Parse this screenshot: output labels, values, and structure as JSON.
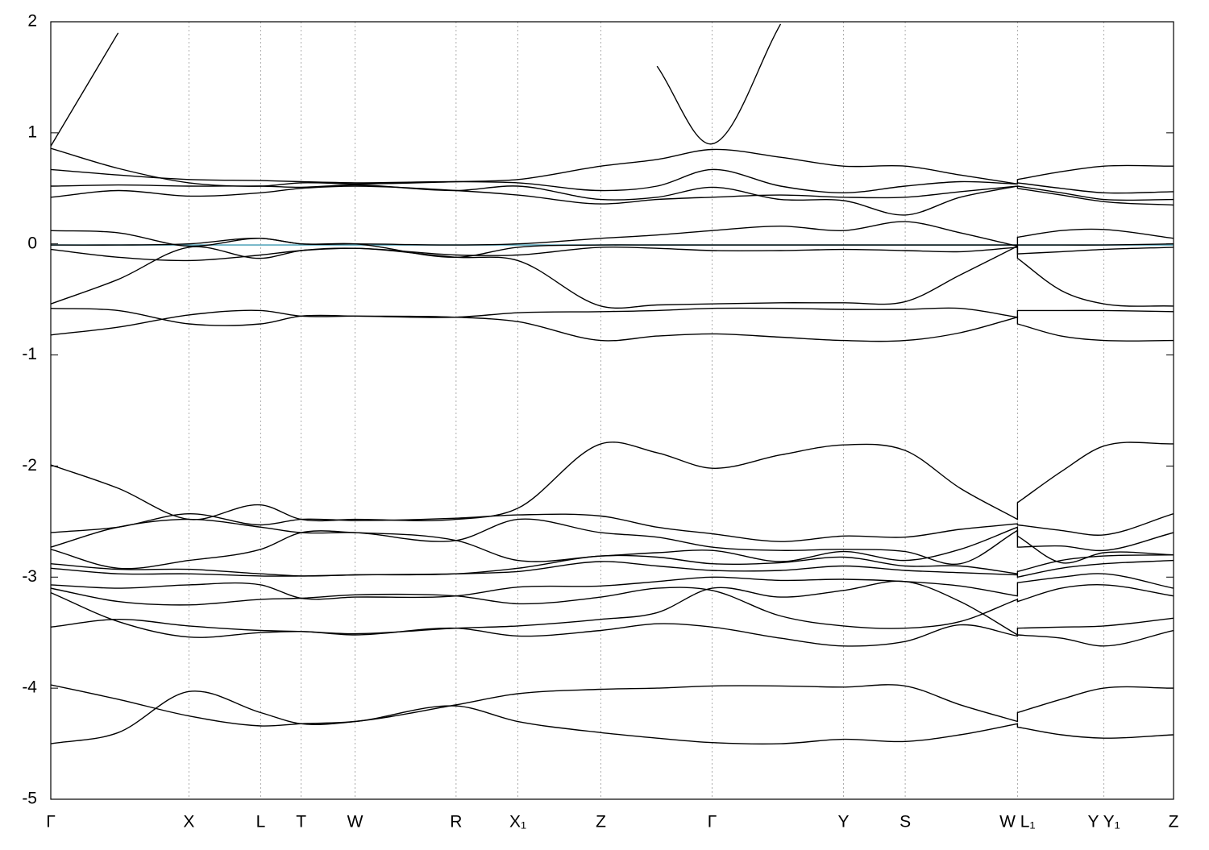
{
  "chart_data": {
    "type": "line",
    "xlim": [
      0,
      1
    ],
    "ylim": [
      -5,
      2
    ],
    "yticks": [
      -5,
      -4,
      -3,
      -2,
      -1,
      0,
      1,
      2
    ],
    "xticks": [
      {
        "value": 0,
        "label": "Γ"
      },
      {
        "value": 0.123,
        "label": "X"
      },
      {
        "value": 0.187,
        "label": "L"
      },
      {
        "value": 0.223,
        "label": "T"
      },
      {
        "value": 0.271,
        "label": "W"
      },
      {
        "value": 0.361,
        "label": "R"
      },
      {
        "value": 0.416,
        "label": "X₁"
      },
      {
        "value": 0.49,
        "label": "Z"
      },
      {
        "value": 0.589,
        "label": "Γ"
      },
      {
        "value": 0.706,
        "label": "Y"
      },
      {
        "value": 0.761,
        "label": "S"
      },
      {
        "value": 0.861,
        "label": "W L₁"
      },
      {
        "value": 0.938,
        "label": "Y Y₁"
      },
      {
        "value": 1,
        "label": "Z"
      }
    ],
    "x_grid": true,
    "reference_line": {
      "value": -0.01,
      "color": "#5aa9bd"
    },
    "x": [
      0,
      0.06,
      0.123,
      0.187,
      0.223,
      0.271,
      0.361,
      0.416,
      0.49,
      0.54,
      0.589,
      0.65,
      0.706,
      0.761,
      0.81,
      0.861,
      0.861,
      0.9,
      0.938,
      1
    ],
    "series": [
      {
        "color": "#000000",
        "values": [
          0.88,
          1.9,
          null,
          null,
          null,
          null,
          null,
          null,
          null,
          1.6,
          0.9,
          1.98,
          null,
          null,
          null,
          null,
          null,
          null,
          null,
          null
        ]
      },
      {
        "color": "#000000",
        "values": [
          0.86,
          0.68,
          0.55,
          0.52,
          0.55,
          0.54,
          0.56,
          0.58,
          0.7,
          0.76,
          0.85,
          0.78,
          0.7,
          0.7,
          0.62,
          0.54,
          0.58,
          0.65,
          0.7,
          0.7
        ]
      },
      {
        "color": "#000000",
        "values": [
          0.67,
          0.62,
          0.58,
          0.57,
          0.56,
          0.55,
          0.56,
          0.55,
          0.48,
          0.52,
          0.67,
          0.52,
          0.46,
          0.52,
          0.56,
          0.54,
          0.55,
          0.5,
          0.46,
          0.47
        ]
      },
      {
        "color": "#000000",
        "values": [
          0.52,
          0.53,
          0.52,
          0.52,
          0.51,
          0.53,
          0.48,
          0.52,
          0.4,
          0.42,
          0.51,
          0.4,
          0.39,
          0.26,
          0.42,
          0.52,
          0.52,
          0.46,
          0.4,
          0.4
        ]
      },
      {
        "color": "#000000",
        "values": [
          0.42,
          0.48,
          0.43,
          0.46,
          0.5,
          0.52,
          0.48,
          0.44,
          0.36,
          0.4,
          0.42,
          0.44,
          0.42,
          0.42,
          0.47,
          0.52,
          0.5,
          0.44,
          0.38,
          0.35
        ]
      },
      {
        "color": "#000000",
        "values": [
          0.12,
          0.1,
          -0.02,
          0.05,
          0.0,
          0.0,
          -0.01,
          0.0,
          0.05,
          0.08,
          0.12,
          0.16,
          0.12,
          0.2,
          0.1,
          -0.02,
          0.06,
          0.12,
          0.13,
          0.05
        ]
      },
      {
        "color": "#000000",
        "values": [
          -0.01,
          -0.01,
          0.0,
          0.05,
          0.0,
          0.0,
          -0.12,
          -0.03,
          -0.01,
          -0.01,
          -0.01,
          -0.01,
          -0.01,
          -0.01,
          -0.01,
          -0.01,
          -0.01,
          -0.01,
          -0.01,
          0.0
        ]
      },
      {
        "color": "#000000",
        "values": [
          -0.05,
          -0.12,
          -0.15,
          -0.1,
          -0.06,
          -0.04,
          -0.1,
          -0.1,
          -0.03,
          -0.04,
          -0.06,
          -0.06,
          -0.05,
          -0.06,
          -0.07,
          -0.03,
          -0.09,
          -0.07,
          -0.05,
          -0.03
        ]
      },
      {
        "color": "#000000",
        "values": [
          -0.54,
          -0.32,
          -0.03,
          -0.13,
          -0.06,
          -0.04,
          -0.12,
          -0.15,
          -0.56,
          -0.55,
          -0.54,
          -0.53,
          -0.53,
          -0.52,
          -0.28,
          -0.02,
          -0.13,
          -0.42,
          -0.54,
          -0.56
        ]
      },
      {
        "color": "#000000",
        "values": [
          -0.58,
          -0.6,
          -0.72,
          -0.72,
          -0.65,
          -0.65,
          -0.66,
          -0.62,
          -0.61,
          -0.6,
          -0.58,
          -0.58,
          -0.59,
          -0.59,
          -0.58,
          -0.66,
          -0.6,
          -0.6,
          -0.6,
          -0.61
        ]
      },
      {
        "color": "#000000",
        "values": [
          -0.82,
          -0.75,
          -0.64,
          -0.6,
          -0.65,
          -0.65,
          -0.66,
          -0.7,
          -0.87,
          -0.83,
          -0.81,
          -0.84,
          -0.87,
          -0.87,
          -0.8,
          -0.66,
          -0.72,
          -0.83,
          -0.87,
          -0.87
        ]
      },
      {
        "color": "#000000",
        "values": [
          -1.99,
          -2.2,
          -2.48,
          -2.35,
          -2.48,
          -2.48,
          -2.48,
          -2.38,
          -1.8,
          -1.88,
          -2.02,
          -1.9,
          -1.81,
          -1.86,
          -2.2,
          -2.48,
          -2.33,
          -2.05,
          -1.82,
          -1.8
        ]
      },
      {
        "color": "#000000",
        "values": [
          -2.6,
          -2.55,
          -2.43,
          -2.53,
          -2.48,
          -2.49,
          -2.47,
          -2.44,
          -2.45,
          -2.55,
          -2.61,
          -2.68,
          -2.63,
          -2.64,
          -2.57,
          -2.52,
          -2.53,
          -2.58,
          -2.62,
          -2.43
        ]
      },
      {
        "color": "#000000",
        "values": [
          -2.73,
          -2.55,
          -2.48,
          -2.55,
          -2.6,
          -2.6,
          -2.67,
          -2.48,
          -2.6,
          -2.64,
          -2.73,
          -2.76,
          -2.75,
          -2.77,
          -2.88,
          -2.58,
          -2.73,
          -2.72,
          -2.76,
          -2.6
        ]
      },
      {
        "color": "#000000",
        "values": [
          -2.75,
          -2.92,
          -2.85,
          -2.75,
          -2.6,
          -2.6,
          -2.67,
          -2.85,
          -2.81,
          -2.78,
          -2.76,
          -2.86,
          -2.77,
          -2.85,
          -2.75,
          -2.55,
          -2.63,
          -2.87,
          -2.78,
          -2.8
        ]
      },
      {
        "color": "#000000",
        "values": [
          -2.88,
          -2.93,
          -2.93,
          -2.97,
          -2.99,
          -2.98,
          -2.97,
          -2.92,
          -2.81,
          -2.82,
          -2.88,
          -2.87,
          -2.82,
          -2.9,
          -2.9,
          -2.97,
          -2.95,
          -2.85,
          -2.81,
          -2.8
        ]
      },
      {
        "color": "#000000",
        "values": [
          -2.92,
          -2.97,
          -2.97,
          -2.99,
          -2.99,
          -2.98,
          -2.97,
          -2.95,
          -2.86,
          -2.9,
          -2.94,
          -2.94,
          -2.9,
          -2.94,
          -2.96,
          -2.98,
          -3.0,
          -2.92,
          -2.88,
          -2.85
        ]
      },
      {
        "color": "#000000",
        "values": [
          -3.07,
          -3.1,
          -3.07,
          -3.07,
          -3.19,
          -3.18,
          -3.17,
          -3.09,
          -3.08,
          -3.04,
          -3.0,
          -3.03,
          -3.02,
          -3.04,
          -3.08,
          -3.17,
          -3.05,
          -3.0,
          -2.97,
          -3.1
        ]
      },
      {
        "color": "#000000",
        "values": [
          -3.1,
          -3.22,
          -3.25,
          -3.2,
          -3.19,
          -3.16,
          -3.17,
          -3.24,
          -3.18,
          -3.1,
          -3.12,
          -3.35,
          -3.44,
          -3.46,
          -3.4,
          -3.2,
          -3.22,
          -3.1,
          -3.07,
          -3.17
        ]
      },
      {
        "color": "#000000",
        "values": [
          -3.45,
          -3.38,
          -3.44,
          -3.48,
          -3.49,
          -3.51,
          -3.46,
          -3.44,
          -3.38,
          -3.32,
          -3.1,
          -3.18,
          -3.12,
          -3.04,
          -3.22,
          -3.52,
          -3.46,
          -3.45,
          -3.44,
          -3.37
        ]
      },
      {
        "color": "#000000",
        "values": [
          -3.14,
          -3.4,
          -3.54,
          -3.5,
          -3.49,
          -3.52,
          -3.46,
          -3.53,
          -3.48,
          -3.42,
          -3.45,
          -3.55,
          -3.62,
          -3.58,
          -3.43,
          -3.53,
          -3.52,
          -3.55,
          -3.62,
          -3.48
        ]
      },
      {
        "color": "#000000",
        "values": [
          -3.97,
          -4.1,
          -4.25,
          -4.34,
          -4.32,
          -4.3,
          -4.15,
          -4.05,
          -4.01,
          -4.0,
          -3.98,
          -3.98,
          -3.99,
          -3.98,
          -4.15,
          -4.3,
          -4.22,
          -4.1,
          -4.0,
          -4.0
        ]
      },
      {
        "color": "#000000",
        "values": [
          -4.5,
          -4.4,
          -4.03,
          -4.22,
          -4.32,
          -4.3,
          -4.16,
          -4.3,
          -4.4,
          -4.45,
          -4.49,
          -4.5,
          -4.46,
          -4.48,
          -4.42,
          -4.32,
          -4.35,
          -4.42,
          -4.45,
          -4.42
        ]
      }
    ]
  }
}
